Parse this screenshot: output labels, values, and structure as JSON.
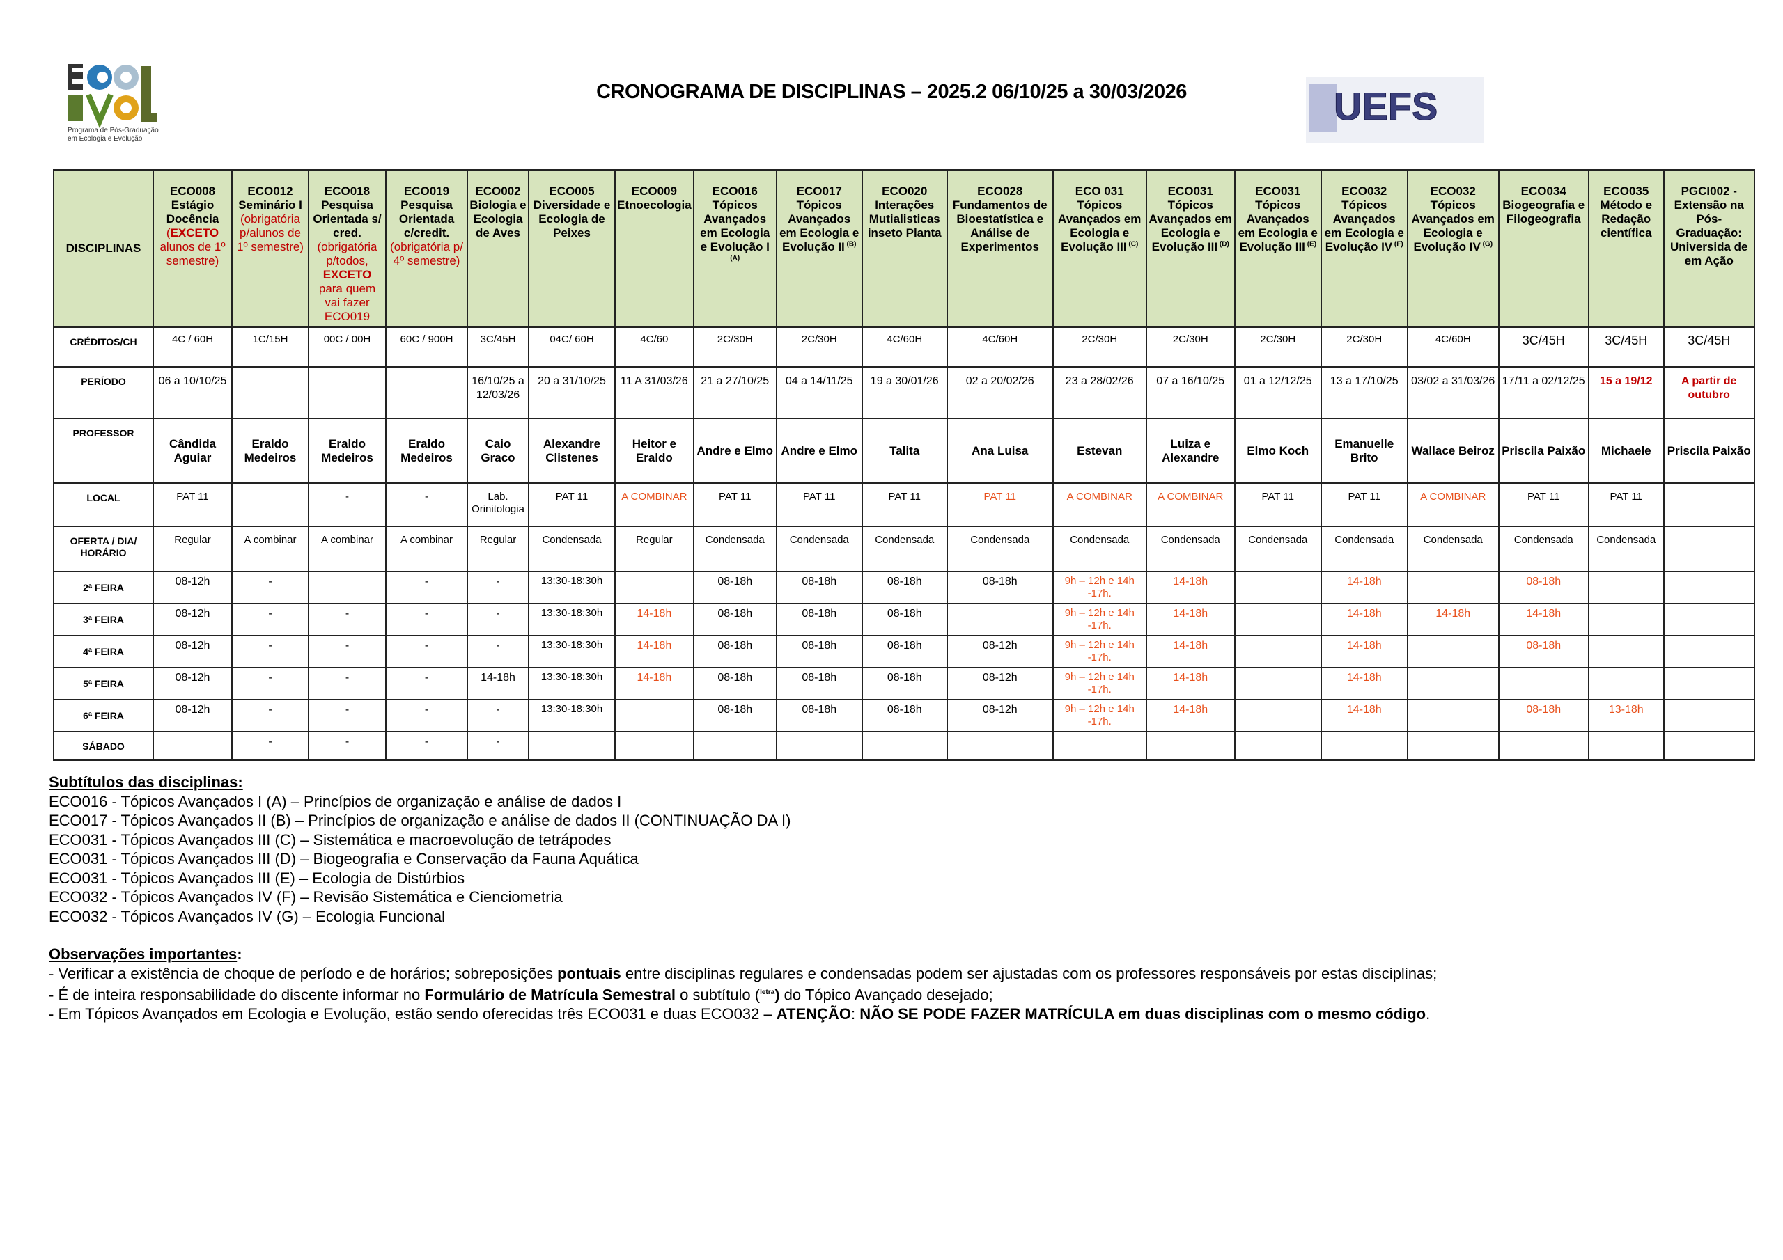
{
  "header": {
    "title": "CRONOGRAMA DE DISCIPLINAS – 2025.2 06/10/25 a 30/03/2026",
    "logo_left_text": "ECO EVOL Programa de Pós-Graduação em Ecologia e Evolução",
    "logo_right_text": "UEFS"
  },
  "row_labels": [
    "DISCIPLINAS",
    "CRÉDITOS/CH",
    "PERÍODO",
    "PROFESSOR",
    "LOCAL",
    "OFERTA / DIA/ HORÁRIO",
    "2ª FEIRA",
    "3ª FEIRA",
    "4ª FEIRA",
    "5ª FEIRA",
    "6ª FEIRA",
    "SÁBADO"
  ],
  "colors": {
    "header_bg": "#d7e4bd",
    "red": "#c00000",
    "orange": "#e8501c"
  },
  "columns": [
    {
      "code": "ECO008",
      "name": "Estágio Docência",
      "note_pre": "(",
      "note_bold": "EXCETO",
      "note_post": " alunos de 1º semestre)",
      "credits": "4C / 60H",
      "period": "06 a 10/10/25",
      "professor": "Cândida Aguiar",
      "local": "PAT 11",
      "offer": "Regular",
      "days": [
        "08-12h",
        "08-12h",
        "08-12h",
        "08-12h",
        "08-12h",
        ""
      ]
    },
    {
      "code": "ECO012",
      "name": "Seminário I",
      "note_pre": "(obrigatória p/alunos  de 1º  semestre)",
      "credits": "1C/15H",
      "period": "",
      "professor": "Eraldo Medeiros",
      "local": "",
      "offer": "A combinar",
      "days": [
        "-",
        "-",
        "-",
        "-",
        "-",
        "-"
      ]
    },
    {
      "code": "ECO018",
      "name": "Pesquisa Orientada s/ cred.",
      "note_pre": "(obrigatória p/todos, ",
      "note_bold": "EXCETO",
      "note_post": " para quem vai fazer ECO019",
      "credits": "00C / 00H",
      "period": "",
      "professor": "Eraldo Medeiros",
      "local": "-",
      "offer": "A combinar",
      "days": [
        "",
        "-",
        "-",
        "-",
        "-",
        "-"
      ]
    },
    {
      "code": "ECO019",
      "name": "Pesquisa Orientada c/credit.",
      "note_pre": "(obrigatória p/ 4º semestre)",
      "credits": "60C / 900H",
      "period": "",
      "professor": "Eraldo Medeiros",
      "local": "-",
      "offer": "A combinar",
      "days": [
        "-",
        "-",
        "-",
        "-",
        "-",
        "-"
      ]
    },
    {
      "code": "ECO002",
      "name": "Biologia e Ecologia de Aves",
      "credits": "3C/45H",
      "period": "16/10/25 a 12/03/26",
      "professor": "Caio Graco",
      "local": "Lab. Orinitologia",
      "offer": "Regular",
      "days": [
        "-",
        "-",
        "-",
        "14-18h",
        "-",
        "-"
      ]
    },
    {
      "code": "ECO005",
      "name": "Diversidade e Ecologia de Peixes",
      "credits": "04C/ 60H",
      "period": "20 a 31/10/25",
      "professor": "Alexandre Clistenes",
      "local": "PAT 11",
      "offer": "Condensada",
      "days": [
        "13:30-18:30h",
        "13:30-18:30h",
        "13:30-18:30h",
        "13:30-18:30h",
        "13:30-18:30h",
        ""
      ]
    },
    {
      "code": "ECO009",
      "name": "Etnoecologia",
      "credits": "4C/60",
      "period": "11 A 31/03/26",
      "professor": "Heitor e Eraldo",
      "local": "A COMBINAR",
      "local_color": "orange",
      "offer": "Regular",
      "days": [
        "",
        "14-18h",
        "14-18h",
        "14-18h",
        "",
        ""
      ],
      "days_color": "orange"
    },
    {
      "code": "ECO016",
      "name": "Tópicos Avançados em Ecologia e Evolução I",
      "sup": "(A)",
      "credits": "2C/30H",
      "period": "21 a 27/10/25",
      "professor": "Andre e Elmo",
      "local": "PAT 11",
      "offer": "Condensada",
      "days": [
        "08-18h",
        "08-18h",
        "08-18h",
        "08-18h",
        "08-18h",
        ""
      ]
    },
    {
      "code": "ECO017",
      "name": "Tópicos Avançados em Ecologia e Evolução II",
      "sup": "(B)",
      "credits": "2C/30H",
      "period": "04 a 14/11/25",
      "professor": "Andre e Elmo",
      "local": "PAT 11",
      "offer": "Condensada",
      "days": [
        "08-18h",
        "08-18h",
        "08-18h",
        "08-18h",
        "08-18h",
        ""
      ]
    },
    {
      "code": "ECO020",
      "name": "Interações Mutialisticas inseto Planta",
      "credits": "4C/60H",
      "period": "19 a 30/01/26",
      "professor": "Talita",
      "local": "PAT 11",
      "offer": "Condensada",
      "days": [
        "08-18h",
        "08-18h",
        "08-18h",
        "08-18h",
        "08-18h",
        ""
      ]
    },
    {
      "code": "ECO028",
      "name": "Fundamentos de Bioestatística e Análise de Experimentos",
      "credits": "4C/60H",
      "period": "02 a 20/02/26",
      "professor": "Ana Luisa",
      "local": "PAT 11",
      "local_color": "orange",
      "offer": "Condensada",
      "days": [
        "08-18h",
        "",
        "08-12h",
        "08-12h",
        "08-12h",
        ""
      ]
    },
    {
      "code": "ECO 031",
      "name": "Tópicos Avançados em Ecologia e Evolução III",
      "sup": "(C)",
      "credits": "2C/30H",
      "period": "23 a 28/02/26",
      "professor": "Estevan",
      "local": "A COMBINAR",
      "local_color": "orange",
      "offer": "Condensada",
      "days": [
        "9h – 12h e 14h -17h.",
        "9h – 12h e 14h -17h.",
        "9h – 12h e 14h -17h.",
        "9h – 12h e 14h -17h.",
        "9h – 12h e 14h -17h.",
        ""
      ],
      "days_color": "orange"
    },
    {
      "code": "ECO031",
      "name": "Tópicos Avançados em Ecologia e Evolução III",
      "sup": "(D)",
      "credits": "2C/30H",
      "period": "07 a 16/10/25",
      "professor": "Luiza e Alexandre",
      "local": "A COMBINAR",
      "local_color": "orange",
      "offer": "Condensada",
      "days": [
        "14-18h",
        "14-18h",
        "14-18h",
        "14-18h",
        "14-18h",
        ""
      ],
      "days_color": "orange"
    },
    {
      "code": "ECO031",
      "name": "Tópicos Avançados em Ecologia e Evolução III",
      "sup": "(E)",
      "credits": "2C/30H",
      "period": "01 a 12/12/25",
      "professor": "Elmo Koch",
      "local": "PAT 11",
      "offer": "Condensada",
      "days": [
        "",
        "",
        "",
        "",
        "",
        ""
      ]
    },
    {
      "code": "ECO032",
      "name": "Tópicos Avançados em Ecologia e Evolução IV",
      "sup": "(F)",
      "credits": "2C/30H",
      "period": "13 a 17/10/25",
      "professor": "Emanuelle Brito",
      "local": "PAT 11",
      "offer": "Condensada",
      "days": [
        "14-18h",
        "14-18h",
        "14-18h",
        "14-18h",
        "14-18h",
        ""
      ],
      "days_color": "orange"
    },
    {
      "code": "ECO032",
      "name": "Tópicos Avançados em Ecologia e Evolução IV",
      "sup": "(G)",
      "credits": "4C/60H",
      "period": "03/02 a 31/03/26",
      "professor": "Wallace Beiroz",
      "local": "A COMBINAR",
      "local_color": "orange",
      "offer": "Condensada",
      "days": [
        "",
        "14-18h",
        "",
        "",
        "",
        ""
      ],
      "days_color": "orange"
    },
    {
      "code": "ECO034",
      "name": "Biogeografia e Filogeografia",
      "credits": "3C/45H",
      "period": "17/11 a 02/12/25",
      "professor": "Priscila Paixão",
      "local": "PAT 11",
      "offer": "Condensada",
      "days": [
        "08-18h",
        "14-18h",
        "08-18h",
        "",
        "08-18h",
        ""
      ],
      "days_color": "orange"
    },
    {
      "code": "ECO035",
      "name": "Método e Redação científica",
      "credits": "3C/45H",
      "period": "15 a 19/12",
      "period_color": "red",
      "professor": "Michaele",
      "local": "PAT 11",
      "offer": "Condensada",
      "days": [
        "",
        "",
        "",
        "",
        "13-18h",
        ""
      ],
      "days_color": "orange"
    },
    {
      "code": "PGCI002 -",
      "name": "Extensão na Pós-Graduação: Universida de em Ação",
      "credits": "3C/45H",
      "period": "A partir de outubro",
      "period_color": "red",
      "professor": "Priscila Paixão",
      "local": "",
      "offer": "",
      "days": [
        "",
        "",
        "",
        "",
        "",
        ""
      ]
    }
  ],
  "subtitles": {
    "heading": "Subtítulos das disciplinas:",
    "items": [
      "ECO016 - Tópicos Avançados I (A) – Princípios de organização e análise de dados I",
      "ECO017 - Tópicos Avançados II (B) – Princípios de organização e análise de dados II (CONTINUAÇÃO DA I)",
      "ECO031 - Tópicos Avançados III (C)  – Sistemática e macroevolução de tetrápodes",
      "ECO031 - Tópicos Avançados III (D)  – Biogeografia e Conservação da Fauna Aquática",
      "ECO031 - Tópicos Avançados III (E)  – Ecologia de Distúrbios",
      "ECO032 - Tópicos Avançados IV (F)  – Revisão Sistemática  e Cienciometria",
      "ECO032 - Tópicos Avançados IV (G) – Ecologia Funcional"
    ]
  },
  "observations": {
    "heading": "Observações importantes",
    "heading_colon": ":",
    "lines": [
      [
        {
          "t": "- Verificar a existência de choque de período e de horários; sobreposições "
        },
        {
          "t": "pontuais",
          "b": true
        },
        {
          "t": " entre disciplinas regulares e condensadas podem ser ajustadas com os professores responsáveis por estas disciplinas;"
        }
      ],
      [
        {
          "t": "- É de inteira responsabilidade do discente informar no "
        },
        {
          "t": "Formulário de Matrícula Semestral",
          "b": true
        },
        {
          "t": " o subtítulo ("
        },
        {
          "t": "letra",
          "b": true,
          "sup": true
        },
        {
          "t": ")",
          "b": true
        },
        {
          "t": " do Tópico Avançado desejado;"
        }
      ],
      [
        {
          "t": "- Em Tópicos Avançados em Ecologia e Evolução, estão sendo oferecidas três ECO031 e duas ECO032 – "
        },
        {
          "t": "ATENÇÃO",
          "b": true
        },
        {
          "t": ": "
        },
        {
          "t": "NÃO SE PODE FAZER MATRÍCULA em duas disciplinas com o mesmo código",
          "b": true
        },
        {
          "t": "."
        }
      ]
    ]
  }
}
